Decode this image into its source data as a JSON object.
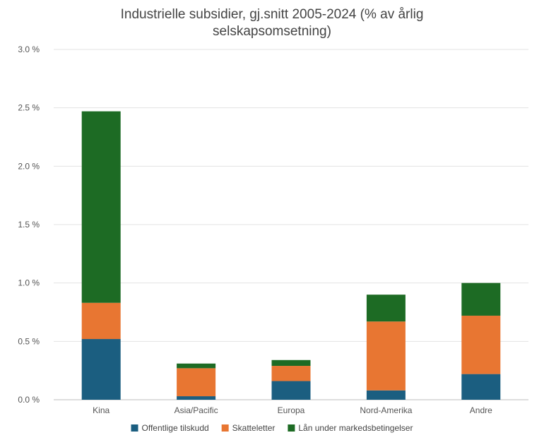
{
  "chart_data": {
    "type": "bar",
    "stacked": true,
    "title_lines": [
      "Industrielle subsidier, gj.snitt 2005-2024 (% av årlig",
      "selskapsomsetning)"
    ],
    "categories": [
      "Kina",
      "Asia/Pacific",
      "Europa",
      "Nord-Amerika",
      "Andre"
    ],
    "series": [
      {
        "name": "Offentlige tilskudd",
        "color": "#1b5e80",
        "values": [
          0.52,
          0.03,
          0.16,
          0.08,
          0.22
        ]
      },
      {
        "name": "Skatteletter",
        "color": "#e87632",
        "values": [
          0.31,
          0.24,
          0.13,
          0.59,
          0.5
        ]
      },
      {
        "name": "Lån under markedsbetingelser",
        "color": "#1d6b24",
        "values": [
          1.64,
          0.04,
          0.05,
          0.23,
          0.28
        ]
      }
    ],
    "ylim": [
      0,
      3.0
    ],
    "yticks": [
      0,
      0.5,
      1.0,
      1.5,
      2.0,
      2.5,
      3.0
    ],
    "ytick_labels": [
      "0.0 %",
      "0.5 %",
      "1.0 %",
      "1.5 %",
      "2.0 %",
      "2.5 %",
      "3.0 %"
    ],
    "grid": true,
    "legend_position": "bottom"
  }
}
